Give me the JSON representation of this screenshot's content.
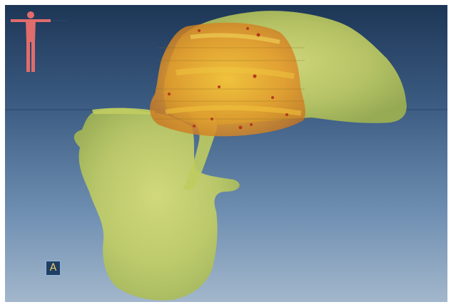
{
  "viewer": {
    "orientation_label": "A",
    "colors": {
      "background_top": "#1d3656",
      "background_bottom": "#a3b7cc",
      "structure_yellow": "#c9d56a",
      "structure_orange": "#e29a2a",
      "orientation_figure": "#e06c6c"
    },
    "icons": [
      "human-orientation-icon"
    ]
  }
}
